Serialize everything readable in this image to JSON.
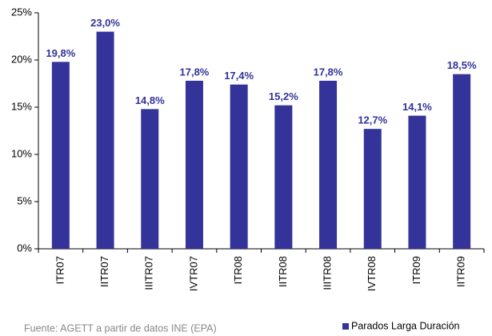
{
  "chart_data": {
    "type": "bar",
    "categories": [
      "ITR07",
      "IITR07",
      "IIITR07",
      "IVTR07",
      "ITR08",
      "IITR08",
      "IIITR08",
      "IVTR08",
      "ITR09",
      "IITR09"
    ],
    "series": [
      {
        "name": "Parados Larga Duración",
        "color": "#333399",
        "values": [
          19.8,
          23.0,
          14.8,
          17.8,
          17.4,
          15.2,
          17.8,
          12.7,
          14.1,
          18.5
        ],
        "value_labels": [
          "19,8%",
          "23,0%",
          "14,8%",
          "17,8%",
          "17,4%",
          "15,2%",
          "17,8%",
          "12,7%",
          "14,1%",
          "18,5%"
        ]
      }
    ],
    "ylim": [
      0,
      25
    ],
    "yticks": [
      {
        "value": 0,
        "label": "0%"
      },
      {
        "value": 5,
        "label": "5%"
      },
      {
        "value": 10,
        "label": "10%"
      },
      {
        "value": 15,
        "label": "15%"
      },
      {
        "value": 20,
        "label": "20%"
      },
      {
        "value": 25,
        "label": "25%"
      }
    ],
    "annotation": "Fuente: AGETT a partir de datos INE (EPA)",
    "legend": "bottom-right"
  }
}
